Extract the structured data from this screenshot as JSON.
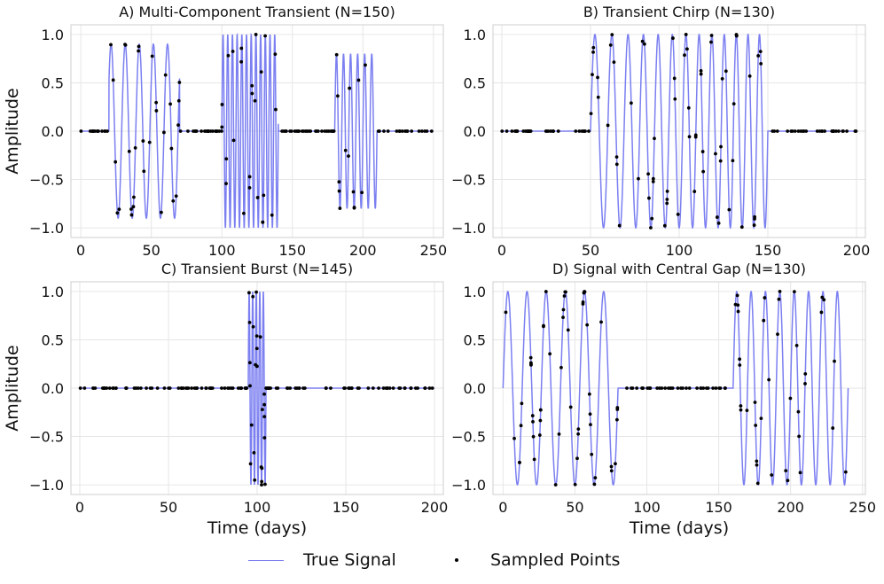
{
  "figure": {
    "legend": {
      "true_signal": "True Signal",
      "sampled_points": "Sampled Points"
    },
    "colors": {
      "signal": "#7b7ff0",
      "points": "#000000",
      "grid": "#e6e6e6",
      "frame": "#cfcfcf"
    }
  },
  "chart_data": [
    {
      "type": "line",
      "title": "A) Multi-Component Transient (N=150)",
      "xlabel": "",
      "ylabel": "Amplitude",
      "xlim": [
        -7,
        257
      ],
      "ylim": [
        -1.1,
        1.1
      ],
      "xticks": [
        0,
        50,
        100,
        150,
        200,
        250
      ],
      "xtick_labels": [
        "0",
        "50",
        "100",
        "150",
        "200",
        "250"
      ],
      "yticks": [
        -1.0,
        -0.5,
        0.0,
        0.5,
        1.0
      ],
      "ytick_labels": [
        "−1.0",
        "−0.5",
        "0.0",
        "0.5",
        "1.0"
      ],
      "x_range": [
        0,
        250
      ],
      "grid": true,
      "segments": [
        {
          "start": 20,
          "end": 70,
          "amp": 0.9,
          "period": 10,
          "phase": 0.65
        },
        {
          "start": 100,
          "end": 140,
          "amp": 1.0,
          "period": 3.33,
          "phase": 0
        },
        {
          "start": 180,
          "end": 210,
          "amp": 0.8,
          "period": 5,
          "phase": 0
        }
      ],
      "n_samples": 150,
      "seed": 11
    },
    {
      "type": "line",
      "title": "B) Transient Chirp (N=130)",
      "xlabel": "",
      "ylabel": "",
      "xlim": [
        -5,
        205
      ],
      "ylim": [
        -1.1,
        1.1
      ],
      "xticks": [
        0,
        50,
        100,
        150,
        200
      ],
      "xtick_labels": [
        "0",
        "50",
        "100",
        "150",
        "200"
      ],
      "yticks": [
        -1.0,
        -0.5,
        0.0,
        0.5,
        1.0
      ],
      "ytick_labels": [
        "−1.0",
        "−0.5",
        "0.0",
        "0.5",
        "1.0"
      ],
      "x_range": [
        0,
        200
      ],
      "grid": true,
      "chirp": {
        "start": 50,
        "end": 150,
        "f0": 0.1,
        "f1": 0.16
      },
      "n_samples": 130,
      "seed": 23
    },
    {
      "type": "line",
      "title": "C) Transient Burst (N=145)",
      "xlabel": "Time (days)",
      "ylabel": "Amplitude",
      "xlim": [
        -5,
        205
      ],
      "ylim": [
        -1.1,
        1.1
      ],
      "xticks": [
        0,
        50,
        100,
        150,
        200
      ],
      "xtick_labels": [
        "0",
        "50",
        "100",
        "150",
        "200"
      ],
      "yticks": [
        -1.0,
        -0.5,
        0.0,
        0.5,
        1.0
      ],
      "ytick_labels": [
        "−1.0",
        "−0.5",
        "0.0",
        "0.5",
        "1.0"
      ],
      "x_range": [
        0,
        200
      ],
      "grid": true,
      "segments": [
        {
          "start": 95,
          "end": 105,
          "amp": 1.0,
          "period": 2,
          "phase": 0
        }
      ],
      "n_samples": 145,
      "seed": 37,
      "dense_window": [
        93,
        107
      ],
      "dense_count": 34
    },
    {
      "type": "line",
      "title": "D) Signal with Central Gap (N=130)",
      "xlabel": "Time (days)",
      "ylabel": "",
      "xlim": [
        -7,
        252
      ],
      "ylim": [
        -1.1,
        1.1
      ],
      "xticks": [
        0,
        50,
        100,
        150,
        200,
        250
      ],
      "xtick_labels": [
        "0",
        "50",
        "100",
        "150",
        "200",
        "250"
      ],
      "yticks": [
        -1.0,
        -0.5,
        0.0,
        0.5,
        1.0
      ],
      "ytick_labels": [
        "−1.0",
        "−0.5",
        "0.0",
        "0.5",
        "1.0"
      ],
      "x_range": [
        0,
        240
      ],
      "grid": true,
      "segments": [
        {
          "start": 0,
          "end": 80,
          "amp": 1.0,
          "period": 13.33,
          "phase": 0
        },
        {
          "start": 160,
          "end": 240,
          "amp": 1.0,
          "period": 10,
          "phase": 0
        }
      ],
      "n_samples": 130,
      "seed": 53
    }
  ]
}
